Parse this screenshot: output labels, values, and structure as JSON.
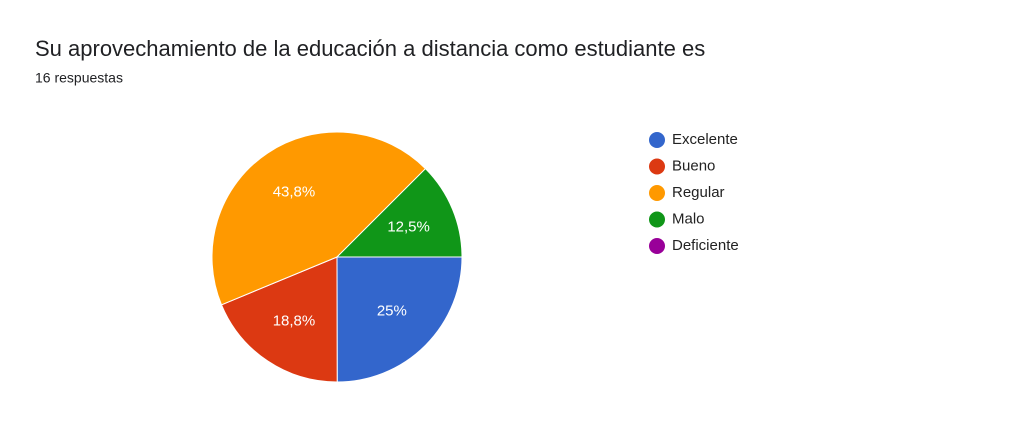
{
  "chart_data": {
    "type": "pie",
    "title": "Su aprovechamiento de la educación a distancia como estudiante es",
    "subtitle": "16 respuestas",
    "categories": [
      "Excelente",
      "Bueno",
      "Regular",
      "Malo",
      "Deficiente"
    ],
    "values": [
      25,
      18.8,
      43.8,
      12.5,
      0
    ],
    "value_labels": [
      "25%",
      "18,8%",
      "43,8%",
      "12,5%",
      null
    ],
    "colors": [
      "#3366cc",
      "#dc3912",
      "#ff9900",
      "#109618",
      "#990099"
    ],
    "legend": "right"
  }
}
